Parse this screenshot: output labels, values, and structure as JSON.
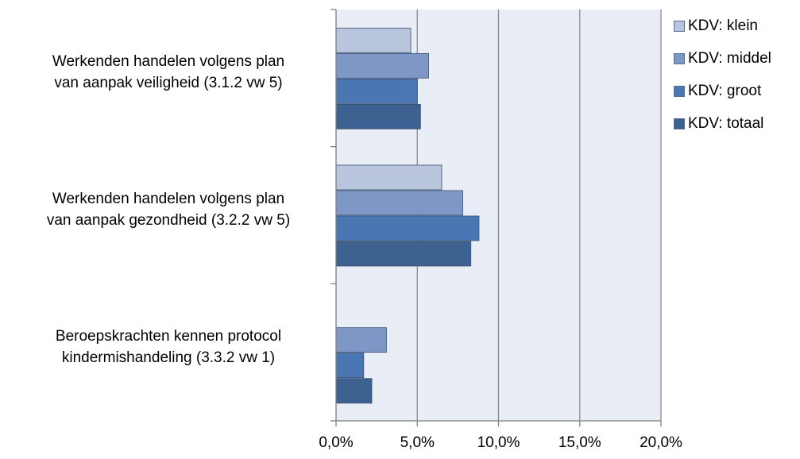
{
  "chart_data": {
    "type": "bar",
    "orientation": "horizontal",
    "categories": [
      "Werkenden handelen volgens plan\nvan aanpak veiligheid (3.1.2 vw 5)",
      "Werkenden handelen volgens plan\nvan aanpak gezondheid (3.2.2 vw 5)",
      "Beroepskrachten kennen protocol\nkindermishandeling (3.3.2 vw 1)"
    ],
    "series": [
      {
        "name": "KDV: klein",
        "color": "#b9c5dd",
        "values": [
          4.6,
          6.5,
          0.0
        ]
      },
      {
        "name": "KDV: middel",
        "color": "#7f97c7",
        "values": [
          5.7,
          7.8,
          3.1
        ]
      },
      {
        "name": "KDV: groot",
        "color": "#4a77b4",
        "values": [
          5.0,
          8.8,
          1.7
        ]
      },
      {
        "name": "KDV: totaal",
        "color": "#3d6191",
        "values": [
          5.2,
          8.3,
          2.2
        ]
      }
    ],
    "xlim": [
      0,
      20
    ],
    "xticks": [
      "0,0%",
      "5,0%",
      "10,0%",
      "15,0%",
      "20,0%"
    ],
    "xtick_values": [
      0,
      5,
      10,
      15,
      20
    ],
    "title": "",
    "xlabel": "",
    "ylabel": "",
    "grid": "vertical",
    "plot_background": "#e9edf5",
    "legend_position": "right"
  }
}
